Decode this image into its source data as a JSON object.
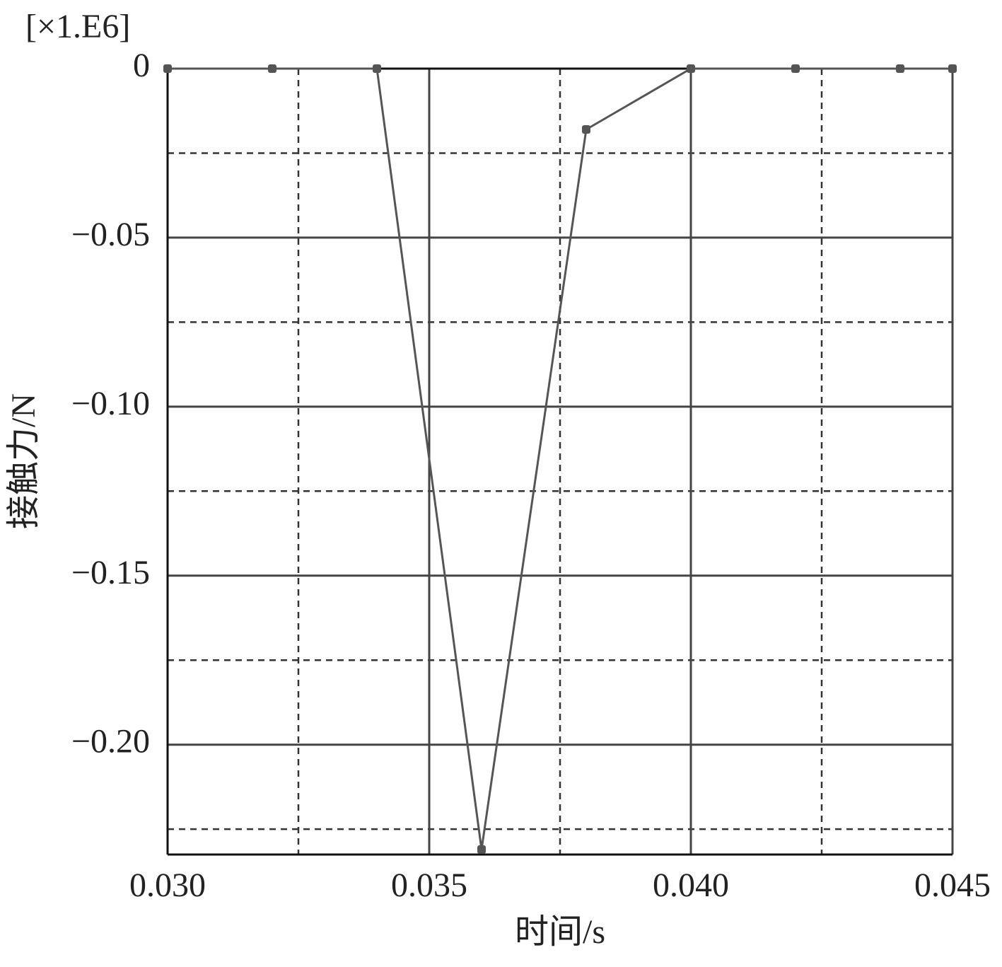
{
  "chart_data": {
    "type": "line",
    "multiplier_label": "[×1.E6]",
    "x_label": "时间/s",
    "y_label": "接触力/N",
    "x": [
      0.03,
      0.032,
      0.034,
      0.036,
      0.038,
      0.04,
      0.042,
      0.044,
      0.045
    ],
    "series": [
      {
        "color": "#555555",
        "values": [
          0,
          0,
          0,
          -0.231,
          -0.018,
          0,
          0,
          0,
          0
        ]
      }
    ],
    "xlim": [
      0.03,
      0.045
    ],
    "ylim": [
      -0.2325,
      0
    ],
    "xticks": [
      {
        "value": 0.03,
        "label": "0.030"
      },
      {
        "value": 0.035,
        "label": "0.035"
      },
      {
        "value": 0.04,
        "label": "0.040"
      },
      {
        "value": 0.045,
        "label": "0.045"
      }
    ],
    "yticks": [
      0,
      {
        "value": -0.05,
        "label": "−0.05"
      },
      {
        "value": -0.1,
        "label": "−0.10"
      },
      {
        "value": -0.15,
        "label": "−0.15"
      },
      {
        "value": -0.2,
        "label": "−0.20"
      }
    ],
    "minor_xticks": [
      0.0325,
      0.0375,
      0.0425
    ],
    "minor_yticks": [
      -0.025,
      -0.075,
      -0.125,
      -0.175,
      -0.225
    ],
    "grid": true
  }
}
